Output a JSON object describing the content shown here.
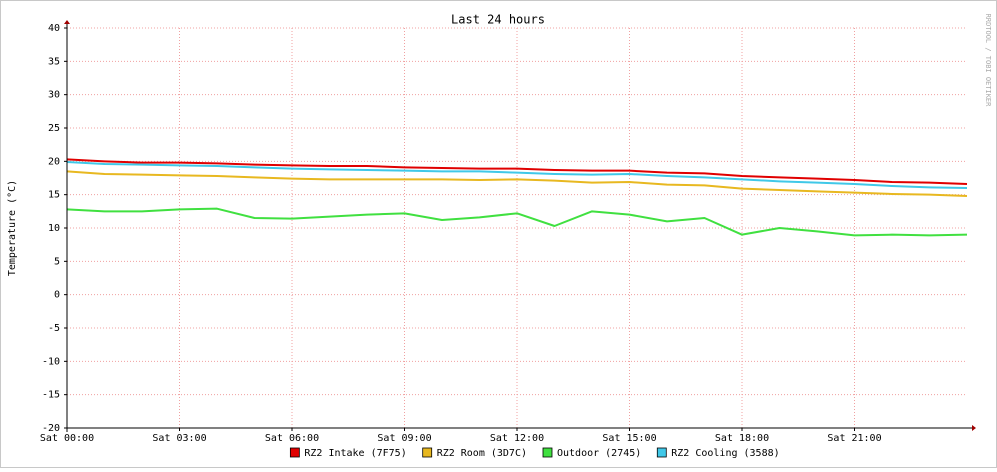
{
  "chart_data": {
    "type": "line",
    "title": "Last 24 hours",
    "y_label": "Temperature (°C)",
    "watermark": "RRDTOOL / TOBI OETIKER",
    "x": [
      0,
      1,
      2,
      3,
      4,
      5,
      6,
      7,
      8,
      9,
      10,
      11,
      12,
      13,
      14,
      15,
      16,
      17,
      18,
      19,
      20,
      21,
      22,
      23,
      24
    ],
    "xlim": [
      0,
      24
    ],
    "xticks": [
      {
        "value": 0,
        "label": "Sat 00:00"
      },
      {
        "value": 3,
        "label": "Sat 03:00"
      },
      {
        "value": 6,
        "label": "Sat 06:00"
      },
      {
        "value": 9,
        "label": "Sat 09:00"
      },
      {
        "value": 12,
        "label": "Sat 12:00"
      },
      {
        "value": 15,
        "label": "Sat 15:00"
      },
      {
        "value": 18,
        "label": "Sat 18:00"
      },
      {
        "value": 21,
        "label": "Sat 21:00"
      }
    ],
    "ylim": [
      -20,
      40
    ],
    "yticks": [
      -20,
      -15,
      -10,
      -5,
      0,
      5,
      10,
      15,
      20,
      25,
      30,
      35,
      40
    ],
    "grid": true,
    "series": [
      {
        "name": "RZ2 Intake (7F75)",
        "color": "#e00000",
        "values": [
          20.3,
          20.0,
          19.8,
          19.8,
          19.7,
          19.5,
          19.4,
          19.3,
          19.3,
          19.1,
          19.0,
          18.9,
          18.9,
          18.7,
          18.6,
          18.6,
          18.3,
          18.2,
          17.8,
          17.6,
          17.4,
          17.2,
          16.9,
          16.8,
          16.6
        ]
      },
      {
        "name": "RZ2 Room (3D7C)",
        "color": "#e8b820",
        "values": [
          18.5,
          18.1,
          18.0,
          17.9,
          17.8,
          17.6,
          17.4,
          17.3,
          17.3,
          17.3,
          17.3,
          17.2,
          17.3,
          17.1,
          16.8,
          16.9,
          16.5,
          16.4,
          15.9,
          15.7,
          15.5,
          15.3,
          15.1,
          15.0,
          14.8
        ]
      },
      {
        "name": "Outdoor (2745)",
        "color": "#40e040",
        "values": [
          12.8,
          12.5,
          12.5,
          12.8,
          12.9,
          11.5,
          11.4,
          11.7,
          12.0,
          12.2,
          11.2,
          11.6,
          12.2,
          10.3,
          12.5,
          12.0,
          11.0,
          11.5,
          9.0,
          10.0,
          9.5,
          8.9,
          9.0,
          8.9,
          9.0
        ]
      },
      {
        "name": "RZ2 Cooling (3588)",
        "color": "#40c8e8",
        "values": [
          19.9,
          19.6,
          19.5,
          19.4,
          19.3,
          19.1,
          18.9,
          18.8,
          18.7,
          18.6,
          18.5,
          18.5,
          18.3,
          18.1,
          18.0,
          18.1,
          17.8,
          17.6,
          17.3,
          17.0,
          16.8,
          16.6,
          16.3,
          16.1,
          16.0
        ]
      }
    ]
  }
}
